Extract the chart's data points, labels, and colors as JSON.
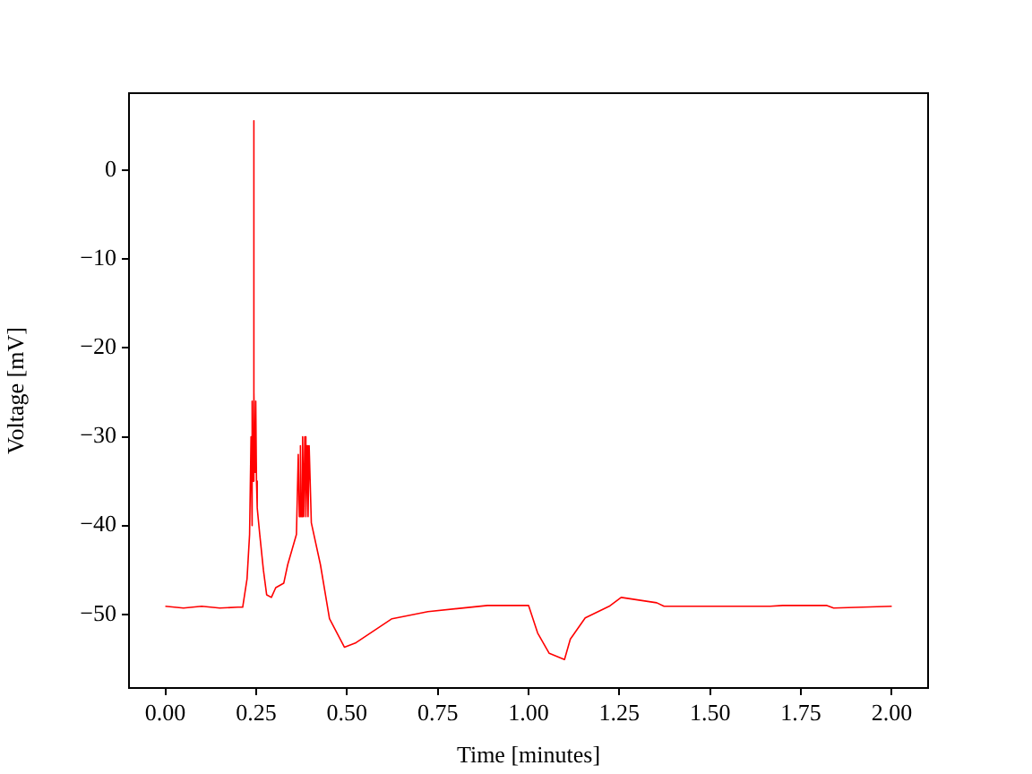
{
  "chart_data": {
    "type": "line",
    "xlabel": "Time [minutes]",
    "ylabel": "Voltage [mV]",
    "xlim": [
      -0.1,
      2.1
    ],
    "ylim": [
      -58.3,
      8.7
    ],
    "xticks": [
      {
        "value": 0,
        "label": "0.00"
      },
      {
        "value": 0.25,
        "label": "0.25"
      },
      {
        "value": 0.5,
        "label": "0.50"
      },
      {
        "value": 0.75,
        "label": "0.75"
      },
      {
        "value": 1,
        "label": "1.00"
      },
      {
        "value": 1.25,
        "label": "1.25"
      },
      {
        "value": 1.5,
        "label": "1.50"
      },
      {
        "value": 1.75,
        "label": "1.75"
      },
      {
        "value": 2,
        "label": "2.00"
      }
    ],
    "yticks": [
      {
        "value": -50,
        "label": "−50"
      },
      {
        "value": -40,
        "label": "−40"
      },
      {
        "value": -30,
        "label": "−30"
      },
      {
        "value": -20,
        "label": "−20"
      },
      {
        "value": -10,
        "label": "−10"
      },
      0
    ],
    "grid": false,
    "legend": false,
    "marker": "none",
    "line_style": "solid",
    "series": [
      {
        "color": "#ff0000",
        "x": [
          0,
          0.05,
          0.1,
          0.15,
          0.2,
          0.213,
          0.225,
          0.232,
          0.236,
          0.238,
          0.24,
          0.2415,
          0.243,
          0.2435,
          0.245,
          0.247,
          0.249,
          0.251,
          0.253,
          0.26,
          0.27,
          0.279,
          0.292,
          0.304,
          0.326,
          0.337,
          0.361,
          0.366,
          0.369,
          0.372,
          0.375,
          0.378,
          0.381,
          0.384,
          0.387,
          0.39,
          0.393,
          0.396,
          0.402,
          0.427,
          0.452,
          0.493,
          0.525,
          0.624,
          0.723,
          0.887,
          1.0,
          1.025,
          1.057,
          1.099,
          1.115,
          1.156,
          1.222,
          1.255,
          1.353,
          1.373,
          1.5,
          1.665,
          1.7,
          1.82,
          1.84,
          2.0
        ],
        "values": [
          -49.1,
          -49.3,
          -49.1,
          -49.3,
          -49.2,
          -49.2,
          -46,
          -41,
          -30,
          -40,
          -26,
          -35,
          5.6,
          -35,
          -25,
          -34,
          -26,
          -35,
          -38,
          -41,
          -45,
          -47.8,
          -48.1,
          -47,
          -46.5,
          -44.4,
          -41,
          -32,
          -39,
          -31,
          -39,
          -30,
          -39,
          -30,
          -39,
          -31,
          -39,
          -31,
          -39.7,
          -44.4,
          -50.5,
          -53.7,
          -53.2,
          -50.5,
          -49.7,
          -49,
          -49,
          -52.1,
          -54.4,
          -55.1,
          -52.8,
          -50.4,
          -49.1,
          -48.1,
          -48.7,
          -49.1,
          -49.1,
          -49.1,
          -49,
          -49,
          -49.3,
          -49.1
        ]
      }
    ]
  }
}
